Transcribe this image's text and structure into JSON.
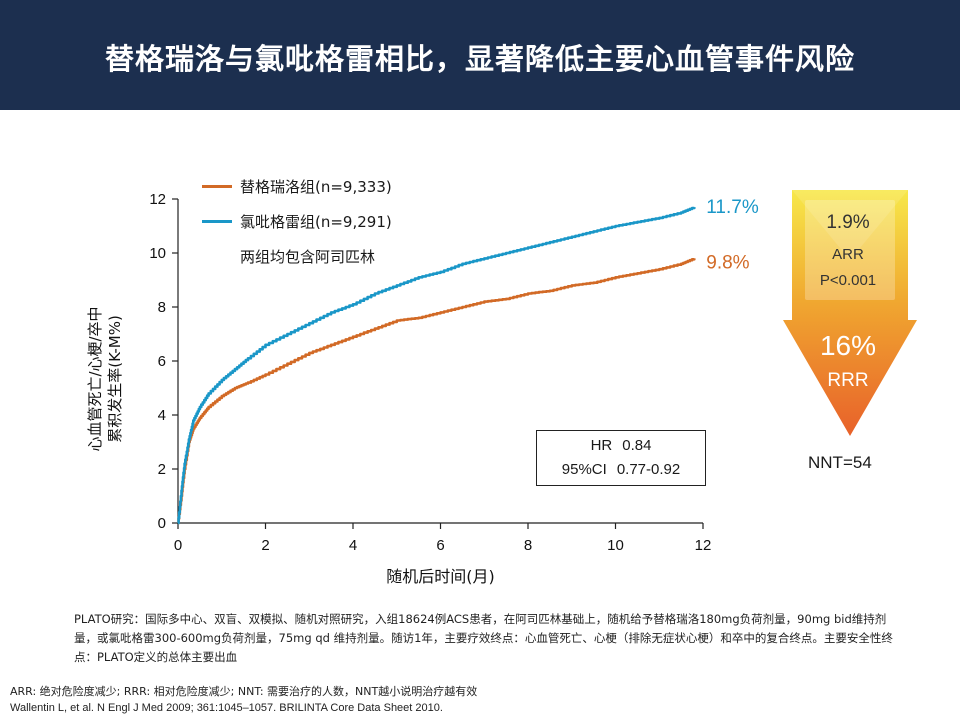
{
  "header": {
    "title": "替格瑞洛与氯吡格雷相比，显著降低主要心血管事件风险"
  },
  "chart_data": {
    "type": "line",
    "xlabel": "随机后时间(月)",
    "ylabel": "心血管死亡/心梗/卒中累积发生率(K-M%)",
    "ylabel_lines": [
      "心血管死亡/心梗/卒中",
      "累积发生率(K-M%)"
    ],
    "xlim": [
      0,
      12
    ],
    "ylim": [
      0,
      12
    ],
    "xticks": [
      0,
      2,
      4,
      6,
      8,
      10,
      12
    ],
    "yticks": [
      0,
      2,
      4,
      6,
      8,
      10,
      12
    ],
    "grid": false,
    "legend_placement": "top-left",
    "series": [
      {
        "name": "替格瑞洛组(n=9,333)",
        "color": "#d26a26",
        "end_label": "9.8%",
        "x": [
          0,
          0.08,
          0.15,
          0.25,
          0.35,
          0.5,
          0.7,
          1.0,
          1.3,
          1.6,
          2.0,
          2.5,
          3.0,
          3.5,
          4.0,
          4.5,
          5.0,
          5.5,
          6.0,
          6.5,
          7.0,
          7.5,
          8.0,
          8.5,
          9.0,
          9.5,
          10.0,
          10.5,
          11.0,
          11.5,
          11.8
        ],
        "y": [
          0,
          1.0,
          2.0,
          3.0,
          3.5,
          3.9,
          4.3,
          4.7,
          5.0,
          5.2,
          5.5,
          5.9,
          6.3,
          6.6,
          6.9,
          7.2,
          7.5,
          7.6,
          7.8,
          8.0,
          8.2,
          8.3,
          8.5,
          8.6,
          8.8,
          8.9,
          9.1,
          9.25,
          9.4,
          9.6,
          9.8
        ]
      },
      {
        "name": "氯吡格雷组(n=9,291)",
        "color": "#1a97c8",
        "end_label": "11.7%",
        "x": [
          0,
          0.08,
          0.15,
          0.25,
          0.35,
          0.5,
          0.7,
          1.0,
          1.3,
          1.6,
          2.0,
          2.5,
          3.0,
          3.5,
          4.0,
          4.5,
          5.0,
          5.5,
          6.0,
          6.5,
          7.0,
          7.5,
          8.0,
          8.5,
          9.0,
          9.5,
          10.0,
          10.5,
          11.0,
          11.5,
          11.8
        ],
        "y": [
          0,
          1.2,
          2.2,
          3.1,
          3.8,
          4.3,
          4.8,
          5.3,
          5.7,
          6.1,
          6.6,
          7.0,
          7.4,
          7.8,
          8.1,
          8.5,
          8.8,
          9.1,
          9.3,
          9.6,
          9.8,
          10.0,
          10.2,
          10.4,
          10.6,
          10.8,
          11.0,
          11.15,
          11.3,
          11.5,
          11.7
        ]
      }
    ],
    "legend_note": "两组均包含阿司匹林"
  },
  "stats": {
    "hr_label": "HR",
    "hr_value": "0.84",
    "ci_label": "95%CI",
    "ci_value": "0.77-0.92"
  },
  "arrow": {
    "arr_value": "1.9%",
    "arr_label": "ARR",
    "p_value": "P<0.001",
    "rrr_value": "16%",
    "rrr_label": "RRR",
    "colors": {
      "top": "#f7e84a",
      "mid": "#f0a830",
      "bottom": "#e8612a"
    }
  },
  "nnt": "NNT=54",
  "study_note": "PLATO研究：国际多中心、双盲、双模拟、随机对照研究，入组18624例ACS患者，在阿司匹林基础上，随机给予替格瑞洛180mg负荷剂量，90mg bid维持剂量，或氯吡格雷300-600mg负荷剂量，75mg qd 维持剂量。随访1年，主要疗效终点：心血管死亡、心梗（排除无症状心梗）和卒中的复合终点。主要安全性终点：PLATO定义的总体主要出血",
  "footnotes": {
    "abbreviations": "ARR: 绝对危险度减少; RRR: 相对危险度减少; NNT: 需要治疗的人数，NNT越小说明治疗越有效",
    "references": "Wallentin L, et al. N Engl J Med 2009; 361:1045–1057.  BRILINTA Core Data Sheet 2010."
  }
}
